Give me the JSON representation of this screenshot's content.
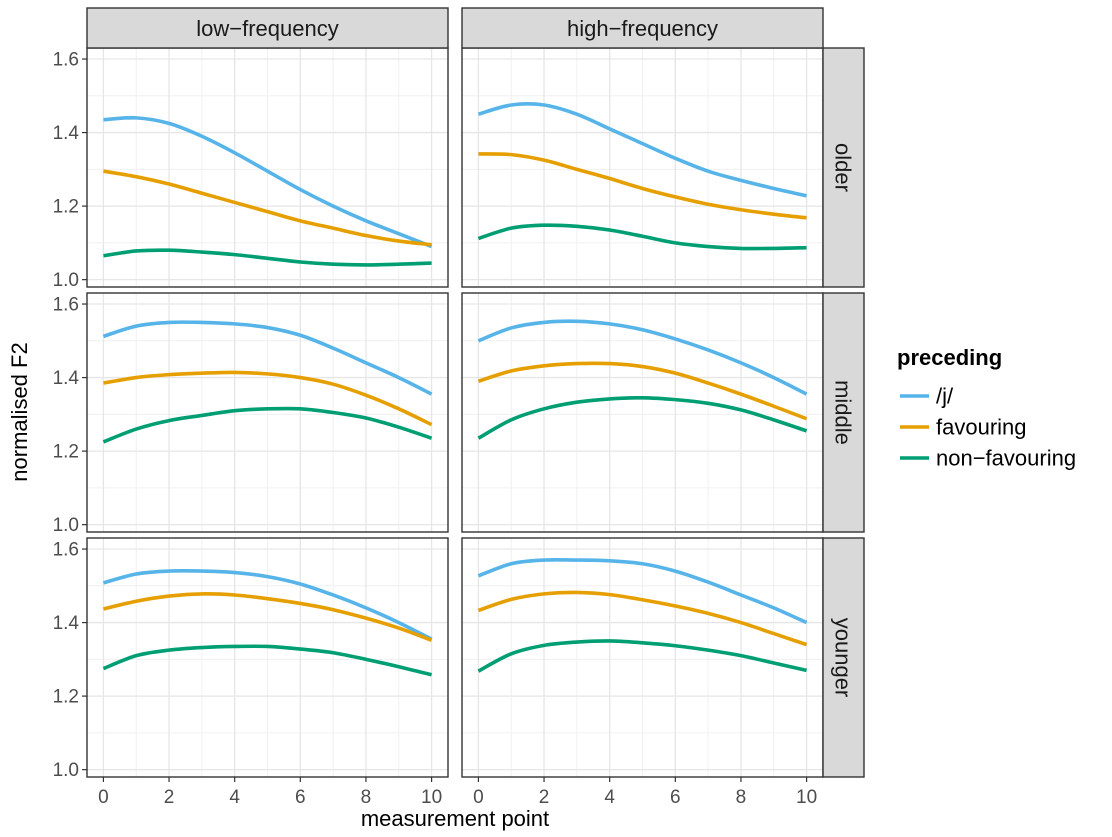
{
  "chart_data": {
    "type": "line",
    "xlabel": "measurement point",
    "ylabel": "normalised F2",
    "xlim": [
      -0.5,
      10.5
    ],
    "ylim": [
      0.98,
      1.63
    ],
    "xticks": [
      0,
      2,
      4,
      6,
      8,
      10
    ],
    "yticks": [
      1.0,
      1.2,
      1.4,
      1.6
    ],
    "ytick_labels": [
      "1.0",
      "1.2",
      "1.4",
      "1.6"
    ],
    "grid": true,
    "legend": {
      "title": "preceding",
      "position": "right",
      "entries": [
        "/j/",
        "favouring",
        "non−favouring"
      ]
    },
    "columns": [
      "low−frequency",
      "high−frequency"
    ],
    "rows": [
      "older",
      "middle",
      "younger"
    ],
    "colors": {
      "/j/": "#56B4E9",
      "favouring": "#E69F00",
      "non-favouring": "#009E73"
    },
    "x": [
      0,
      1,
      2,
      3,
      4,
      5,
      6,
      7,
      8,
      9,
      10
    ],
    "panels": [
      {
        "column": "low−frequency",
        "row": "older",
        "series": [
          {
            "name": "/j/",
            "values": [
              1.435,
              1.44,
              1.425,
              1.39,
              1.345,
              1.295,
              1.245,
              1.2,
              1.16,
              1.125,
              1.09
            ]
          },
          {
            "name": "favouring",
            "values": [
              1.295,
              1.28,
              1.26,
              1.235,
              1.21,
              1.185,
              1.16,
              1.14,
              1.12,
              1.105,
              1.095
            ]
          },
          {
            "name": "non-favouring",
            "values": [
              1.065,
              1.078,
              1.08,
              1.075,
              1.068,
              1.058,
              1.048,
              1.042,
              1.04,
              1.042,
              1.045
            ]
          }
        ]
      },
      {
        "column": "high−frequency",
        "row": "older",
        "series": [
          {
            "name": "/j/",
            "values": [
              1.45,
              1.475,
              1.475,
              1.45,
              1.41,
              1.37,
              1.33,
              1.295,
              1.27,
              1.248,
              1.228
            ]
          },
          {
            "name": "favouring",
            "values": [
              1.342,
              1.34,
              1.325,
              1.3,
              1.275,
              1.248,
              1.225,
              1.205,
              1.19,
              1.178,
              1.168
            ]
          },
          {
            "name": "non-favouring",
            "values": [
              1.112,
              1.14,
              1.148,
              1.145,
              1.135,
              1.118,
              1.1,
              1.09,
              1.085,
              1.085,
              1.087
            ]
          }
        ]
      },
      {
        "column": "low−frequency",
        "row": "middle",
        "series": [
          {
            "name": "/j/",
            "values": [
              1.512,
              1.54,
              1.55,
              1.55,
              1.546,
              1.536,
              1.515,
              1.48,
              1.44,
              1.4,
              1.355
            ]
          },
          {
            "name": "favouring",
            "values": [
              1.385,
              1.4,
              1.408,
              1.412,
              1.414,
              1.41,
              1.4,
              1.382,
              1.352,
              1.315,
              1.272
            ]
          },
          {
            "name": "non-favouring",
            "values": [
              1.225,
              1.26,
              1.283,
              1.297,
              1.31,
              1.315,
              1.315,
              1.305,
              1.29,
              1.265,
              1.235
            ]
          }
        ]
      },
      {
        "column": "high−frequency",
        "row": "middle",
        "series": [
          {
            "name": "/j/",
            "values": [
              1.5,
              1.535,
              1.55,
              1.553,
              1.546,
              1.53,
              1.505,
              1.475,
              1.44,
              1.4,
              1.355
            ]
          },
          {
            "name": "favouring",
            "values": [
              1.39,
              1.418,
              1.432,
              1.438,
              1.438,
              1.43,
              1.412,
              1.385,
              1.355,
              1.322,
              1.288
            ]
          },
          {
            "name": "non-favouring",
            "values": [
              1.235,
              1.285,
              1.315,
              1.333,
              1.342,
              1.345,
              1.34,
              1.33,
              1.312,
              1.285,
              1.255
            ]
          }
        ]
      },
      {
        "column": "low−frequency",
        "row": "younger",
        "series": [
          {
            "name": "/j/",
            "values": [
              1.508,
              1.532,
              1.54,
              1.54,
              1.536,
              1.525,
              1.505,
              1.475,
              1.44,
              1.4,
              1.355
            ]
          },
          {
            "name": "favouring",
            "values": [
              1.437,
              1.458,
              1.472,
              1.478,
              1.475,
              1.465,
              1.452,
              1.435,
              1.412,
              1.385,
              1.352
            ]
          },
          {
            "name": "non-favouring",
            "values": [
              1.275,
              1.31,
              1.325,
              1.332,
              1.335,
              1.335,
              1.328,
              1.318,
              1.3,
              1.28,
              1.258
            ]
          }
        ]
      },
      {
        "column": "high−frequency",
        "row": "younger",
        "series": [
          {
            "name": "/j/",
            "values": [
              1.527,
              1.56,
              1.57,
              1.57,
              1.568,
              1.56,
              1.54,
              1.51,
              1.475,
              1.44,
              1.4
            ]
          },
          {
            "name": "favouring",
            "values": [
              1.433,
              1.463,
              1.478,
              1.482,
              1.476,
              1.462,
              1.445,
              1.425,
              1.4,
              1.37,
              1.34
            ]
          },
          {
            "name": "non-favouring",
            "values": [
              1.268,
              1.315,
              1.338,
              1.347,
              1.35,
              1.345,
              1.337,
              1.325,
              1.31,
              1.29,
              1.27
            ]
          }
        ]
      }
    ]
  }
}
